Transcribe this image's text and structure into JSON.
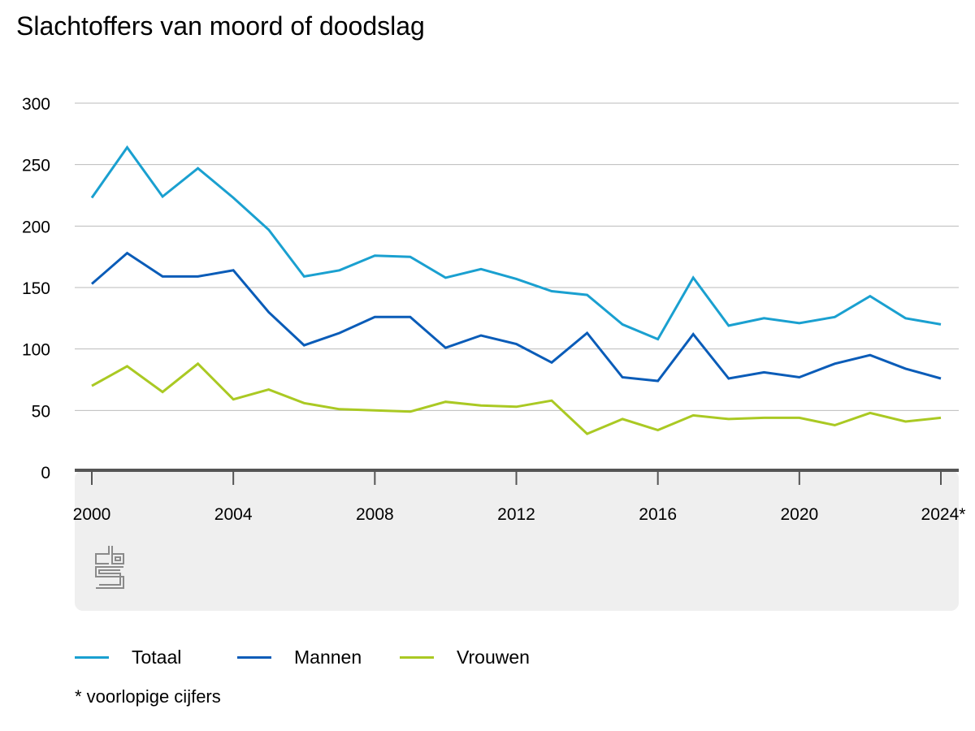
{
  "title": "Slachtoffers van moord of doodslag",
  "footnote": "* voorlopige cijfers",
  "source_logo": "cbs-logo",
  "chart_data": {
    "type": "line",
    "title": "Slachtoffers van moord of doodslag",
    "xlabel": "",
    "ylabel": "",
    "ylim": [
      0,
      300
    ],
    "yticks": [
      0,
      50,
      100,
      150,
      200,
      250,
      300
    ],
    "x": [
      2000,
      2001,
      2002,
      2003,
      2004,
      2005,
      2006,
      2007,
      2008,
      2009,
      2010,
      2011,
      2012,
      2013,
      2014,
      2015,
      2016,
      2017,
      2018,
      2019,
      2020,
      2021,
      2022,
      2023,
      2024
    ],
    "xtick_labels": [
      "2000",
      "2004",
      "2008",
      "2012",
      "2016",
      "2020",
      "2024*"
    ],
    "xtick_values": [
      2000,
      2004,
      2008,
      2012,
      2016,
      2020,
      2024
    ],
    "grid": true,
    "legend_position": "bottom",
    "series": [
      {
        "name": "Totaal",
        "color": "#1aa0d0",
        "values": [
          223,
          264,
          224,
          247,
          223,
          197,
          159,
          164,
          176,
          175,
          158,
          165,
          157,
          147,
          144,
          120,
          108,
          158,
          119,
          125,
          121,
          126,
          143,
          125,
          120
        ]
      },
      {
        "name": "Mannen",
        "color": "#0a5cb8",
        "values": [
          153,
          178,
          159,
          159,
          164,
          130,
          103,
          113,
          126,
          126,
          101,
          111,
          104,
          89,
          113,
          77,
          74,
          112,
          76,
          81,
          77,
          88,
          95,
          84,
          76
        ]
      },
      {
        "name": "Vrouwen",
        "color": "#aac923",
        "values": [
          70,
          86,
          65,
          88,
          59,
          67,
          56,
          51,
          50,
          49,
          57,
          54,
          53,
          58,
          31,
          43,
          34,
          46,
          43,
          44,
          44,
          38,
          48,
          41,
          44
        ]
      }
    ]
  }
}
